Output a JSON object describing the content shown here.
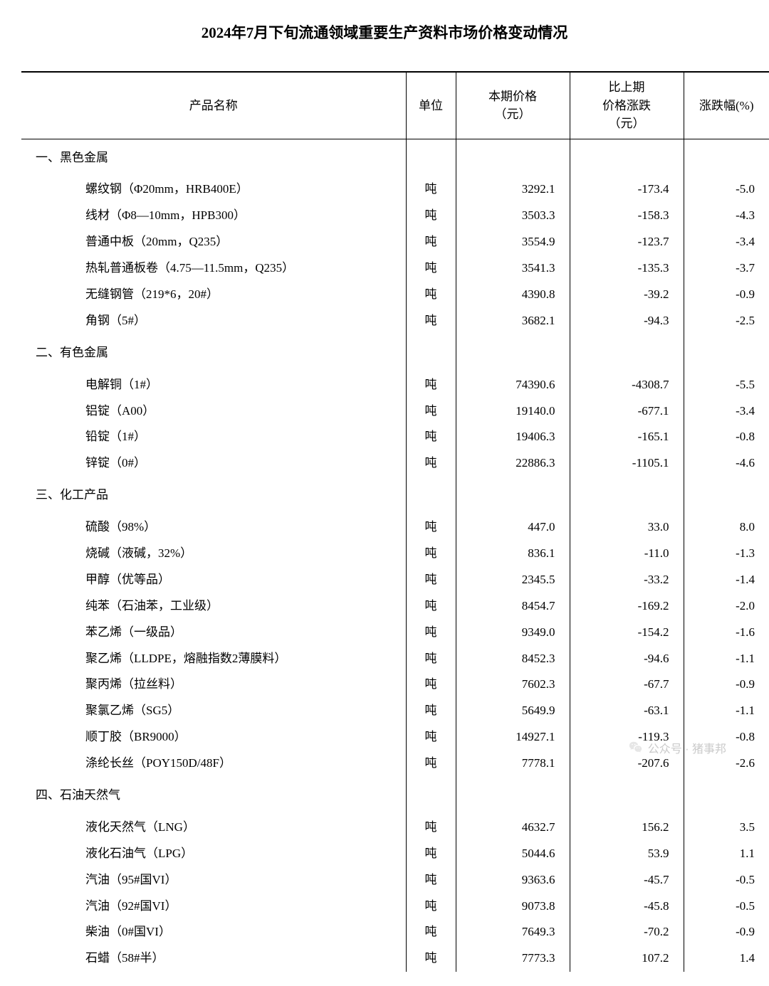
{
  "title": "2024年7月下旬流通领域重要生产资料市场价格变动情况",
  "columns": {
    "name": "产品名称",
    "unit": "单位",
    "price": "本期价格\n（元）",
    "change": "比上期\n价格涨跌\n（元）",
    "pct": "涨跌幅(%)"
  },
  "sections": [
    {
      "heading": "一、黑色金属",
      "rows": [
        {
          "name": "螺纹钢（Φ20mm，HRB400E）",
          "unit": "吨",
          "price": "3292.1",
          "change": "-173.4",
          "pct": "-5.0"
        },
        {
          "name": "线材（Φ8—10mm，HPB300）",
          "unit": "吨",
          "price": "3503.3",
          "change": "-158.3",
          "pct": "-4.3"
        },
        {
          "name": "普通中板（20mm，Q235）",
          "unit": "吨",
          "price": "3554.9",
          "change": "-123.7",
          "pct": "-3.4"
        },
        {
          "name": "热轧普通板卷（4.75—11.5mm，Q235）",
          "unit": "吨",
          "price": "3541.3",
          "change": "-135.3",
          "pct": "-3.7"
        },
        {
          "name": "无缝钢管（219*6，20#）",
          "unit": "吨",
          "price": "4390.8",
          "change": "-39.2",
          "pct": "-0.9"
        },
        {
          "name": "角钢（5#）",
          "unit": "吨",
          "price": "3682.1",
          "change": "-94.3",
          "pct": "-2.5"
        }
      ]
    },
    {
      "heading": "二、有色金属",
      "rows": [
        {
          "name": "电解铜（1#）",
          "unit": "吨",
          "price": "74390.6",
          "change": "-4308.7",
          "pct": "-5.5"
        },
        {
          "name": "铝锭（A00）",
          "unit": "吨",
          "price": "19140.0",
          "change": "-677.1",
          "pct": "-3.4"
        },
        {
          "name": "铅锭（1#）",
          "unit": "吨",
          "price": "19406.3",
          "change": "-165.1",
          "pct": "-0.8"
        },
        {
          "name": "锌锭（0#）",
          "unit": "吨",
          "price": "22886.3",
          "change": "-1105.1",
          "pct": "-4.6"
        }
      ]
    },
    {
      "heading": "三、化工产品",
      "rows": [
        {
          "name": "硫酸（98%）",
          "unit": "吨",
          "price": "447.0",
          "change": "33.0",
          "pct": "8.0"
        },
        {
          "name": "烧碱（液碱，32%）",
          "unit": "吨",
          "price": "836.1",
          "change": "-11.0",
          "pct": "-1.3"
        },
        {
          "name": "甲醇（优等品）",
          "unit": "吨",
          "price": "2345.5",
          "change": "-33.2",
          "pct": "-1.4"
        },
        {
          "name": "纯苯（石油苯，工业级）",
          "unit": "吨",
          "price": "8454.7",
          "change": "-169.2",
          "pct": "-2.0"
        },
        {
          "name": "苯乙烯（一级品）",
          "unit": "吨",
          "price": "9349.0",
          "change": "-154.2",
          "pct": "-1.6"
        },
        {
          "name": "聚乙烯（LLDPE，熔融指数2薄膜料）",
          "unit": "吨",
          "price": "8452.3",
          "change": "-94.6",
          "pct": "-1.1"
        },
        {
          "name": "聚丙烯（拉丝料）",
          "unit": "吨",
          "price": "7602.3",
          "change": "-67.7",
          "pct": "-0.9"
        },
        {
          "name": "聚氯乙烯（SG5）",
          "unit": "吨",
          "price": "5649.9",
          "change": "-63.1",
          "pct": "-1.1"
        },
        {
          "name": "顺丁胶（BR9000）",
          "unit": "吨",
          "price": "14927.1",
          "change": "-119.3",
          "pct": "-0.8"
        },
        {
          "name": "涤纶长丝（POY150D/48F）",
          "unit": "吨",
          "price": "7778.1",
          "change": "-207.6",
          "pct": "-2.6"
        }
      ]
    },
    {
      "heading": "四、石油天然气",
      "rows": [
        {
          "name": "液化天然气（LNG）",
          "unit": "吨",
          "price": "4632.7",
          "change": "156.2",
          "pct": "3.5"
        },
        {
          "name": "液化石油气（LPG）",
          "unit": "吨",
          "price": "5044.6",
          "change": "53.9",
          "pct": "1.1"
        },
        {
          "name": "汽油（95#国VI）",
          "unit": "吨",
          "price": "9363.6",
          "change": "-45.7",
          "pct": "-0.5"
        },
        {
          "name": "汽油（92#国VI）",
          "unit": "吨",
          "price": "9073.8",
          "change": "-45.8",
          "pct": "-0.5"
        },
        {
          "name": "柴油（0#国VI）",
          "unit": "吨",
          "price": "7649.3",
          "change": "-70.2",
          "pct": "-0.9"
        },
        {
          "name": "石蜡（58#半）",
          "unit": "吨",
          "price": "7773.3",
          "change": "107.2",
          "pct": "1.4"
        }
      ]
    }
  ],
  "watermark": "公众号 · 猪事邦"
}
